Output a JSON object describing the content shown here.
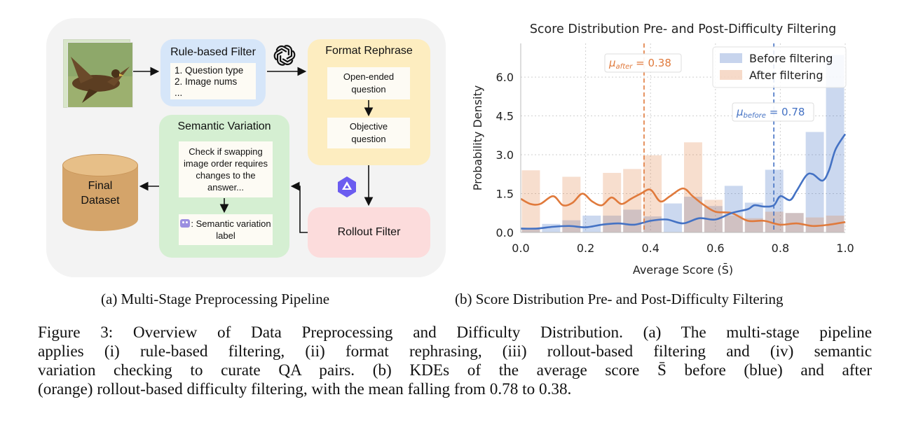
{
  "pipeline": {
    "rule_filter": {
      "title": "Rule-based Filter",
      "items": [
        "1. Question type",
        "2. Image nums",
        "..."
      ]
    },
    "format_rephrase": {
      "title": "Format Rephrase",
      "open_ended": "Open-ended question",
      "objective": "Objective question"
    },
    "rollout_filter": {
      "title": "Rollout Filter"
    },
    "semantic_variation": {
      "title": "Semantic Variation",
      "check": "Check if swapping image order requires changes to the answer...",
      "label": ": Semantic variation label"
    },
    "final_dataset": {
      "line1": "Final",
      "line2": "Dataset"
    },
    "icons": {
      "openai": "openai-logo-icon",
      "qwen": "qwen-logo-icon",
      "robot": "robot-icon"
    },
    "colors": {
      "rule_filter": "#d6e6f9",
      "format_rephrase": "#fdedc0",
      "rollout_filter": "#fcdcdc",
      "semantic_variation": "#d5efd2",
      "final_dataset": "#d4a46a"
    }
  },
  "captions": {
    "a": "(a) Multi-Stage Preprocessing Pipeline",
    "b": "(b) Score Distribution Pre- and Post-Difficulty Filtering",
    "figure": [
      "Figure 3: Overview of Data Preprocessing and Difficulty Distribution. (a) The multi-stage pipeline",
      "applies (i) rule-based filtering, (ii) format rephrasing, (iii) rollout-based filtering and (iv) semantic",
      "variation checking to curate QA pairs. (b) KDEs of the average score S̄ before (blue) and after",
      "(orange) rollout-based difficulty filtering, with the mean falling from 0.78 to 0.38."
    ]
  },
  "chart_data": {
    "type": "bar",
    "title": "Score Distribution Pre- and Post-Difficulty Filtering",
    "xlabel": "Average Score (S̄)",
    "ylabel": "Probability Density",
    "xlim": [
      0.0,
      1.0
    ],
    "ylim": [
      0.0,
      7.3
    ],
    "xticks": [
      0.0,
      0.2,
      0.4,
      0.6,
      0.8,
      1.0
    ],
    "xtick_labels": [
      "0.0",
      "0.2",
      "0.4",
      "0.6",
      "0.8",
      "1.0"
    ],
    "yticks": [
      0.0,
      1.5,
      3.0,
      4.5,
      6.0
    ],
    "ytick_labels": [
      "0.0",
      "1.5",
      "3.0",
      "4.5",
      "6.0"
    ],
    "grid": true,
    "legend_placement": "top-right",
    "colors": {
      "before": "#4472c4",
      "after": "#e07a3c"
    },
    "bins": [
      0.0,
      0.0625,
      0.125,
      0.1875,
      0.25,
      0.3125,
      0.375,
      0.4375,
      0.5,
      0.5625,
      0.625,
      0.6875,
      0.75,
      0.8125,
      0.875,
      0.9375,
      1.0
    ],
    "series": [
      {
        "name": "Before filtering",
        "hist": [
          0.18,
          0.33,
          0.47,
          0.65,
          0.65,
          0.88,
          0.62,
          1.12,
          1.38,
          1.02,
          1.8,
          1.15,
          2.42,
          0.75,
          3.88,
          6.85
        ],
        "kde_x": [
          0.0,
          0.05,
          0.1,
          0.15,
          0.2,
          0.25,
          0.3,
          0.35,
          0.4,
          0.45,
          0.5,
          0.55,
          0.6,
          0.65,
          0.7,
          0.72,
          0.75,
          0.78,
          0.8,
          0.83,
          0.85,
          0.88,
          0.9,
          0.93,
          0.95,
          0.97,
          1.0
        ],
        "kde_y": [
          0.15,
          0.15,
          0.22,
          0.25,
          0.2,
          0.3,
          0.35,
          0.3,
          0.45,
          0.5,
          0.35,
          0.55,
          0.5,
          0.75,
          0.9,
          1.05,
          1.0,
          1.05,
          1.4,
          1.25,
          1.6,
          2.2,
          2.25,
          2.0,
          2.4,
          3.2,
          3.8
        ],
        "mean": 0.78,
        "mean_label": "μbefore = 0.78"
      },
      {
        "name": "After filtering",
        "hist": [
          2.4,
          0.0,
          2.15,
          0.0,
          2.3,
          2.45,
          2.98,
          0.0,
          3.48,
          1.26,
          0.65,
          0.55,
          0.8,
          0.75,
          0.58,
          0.65
        ],
        "kde_x": [
          0.0,
          0.03,
          0.06,
          0.1,
          0.13,
          0.16,
          0.19,
          0.22,
          0.25,
          0.28,
          0.31,
          0.34,
          0.37,
          0.4,
          0.43,
          0.46,
          0.5,
          0.53,
          0.56,
          0.6,
          0.65,
          0.7,
          0.75,
          0.8,
          0.85,
          0.9,
          0.95,
          1.0
        ],
        "kde_y": [
          1.3,
          1.1,
          1.1,
          1.4,
          1.05,
          1.15,
          1.5,
          1.2,
          1.05,
          1.35,
          1.1,
          1.3,
          1.5,
          1.65,
          1.2,
          1.4,
          1.7,
          1.4,
          1.1,
          0.8,
          0.75,
          0.45,
          0.45,
          0.3,
          0.35,
          0.25,
          0.3,
          0.4
        ],
        "mean": 0.38,
        "mean_label": "μafter = 0.38"
      }
    ]
  }
}
